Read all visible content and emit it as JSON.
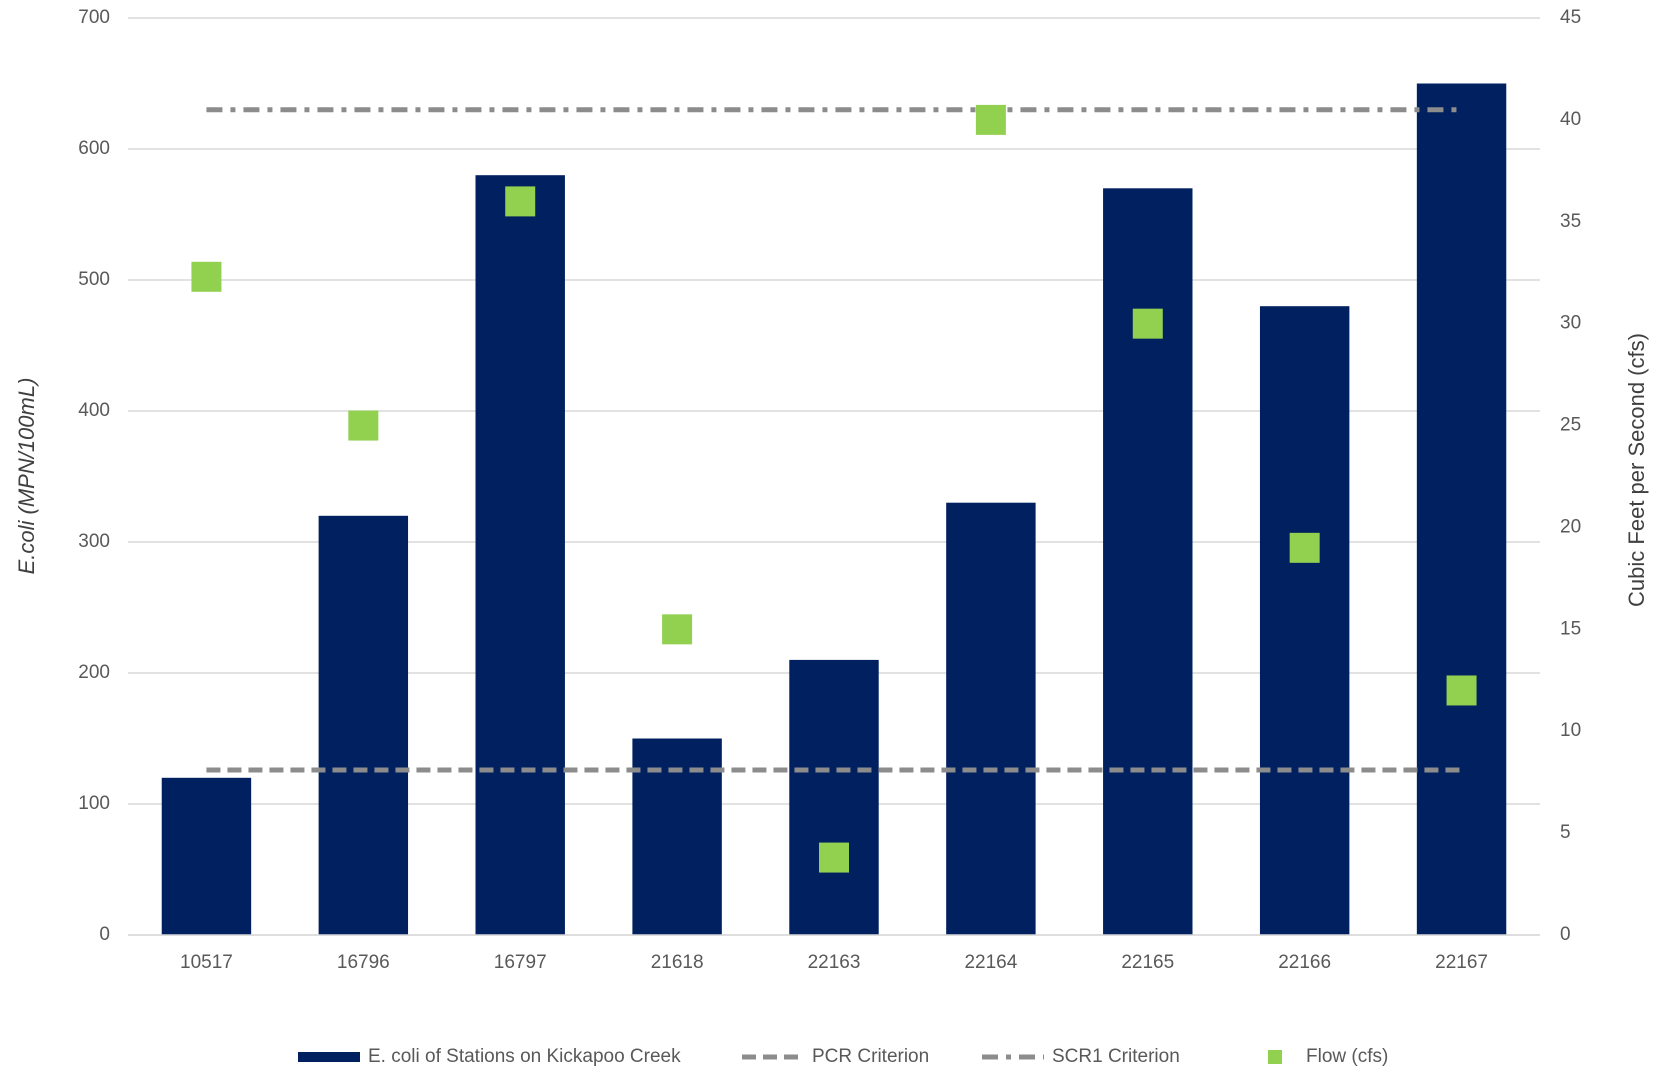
{
  "chart_data": {
    "type": "bar",
    "ylabel": "E.coli (MPN/100mL)",
    "y2label": "Cubic Feet per Second (cfs)",
    "categories": [
      "10517",
      "16796",
      "16797",
      "21618",
      "22163",
      "22164",
      "22165",
      "22166",
      "22167"
    ],
    "series": [
      {
        "name": "E. coli of Stations on Kickapoo Creek",
        "type": "bar",
        "color": "#002060",
        "values": [
          120,
          320,
          580,
          150,
          210,
          330,
          570,
          480,
          650
        ]
      },
      {
        "name": "PCR Criterion",
        "type": "line",
        "dash": "dash",
        "color": "#8c8c8c",
        "values": [
          126,
          126,
          126,
          126,
          126,
          126,
          126,
          126,
          126
        ]
      },
      {
        "name": "SCR1 Criterion",
        "type": "line",
        "dash": "dashdot",
        "color": "#8c8c8c",
        "values": [
          630,
          630,
          630,
          630,
          630,
          630,
          630,
          630,
          630
        ]
      },
      {
        "name": "Flow (cfs)",
        "type": "scatter",
        "axis": "y2",
        "color": "#92d050",
        "values": [
          32.3,
          25,
          36,
          15,
          3.8,
          40,
          30,
          19,
          12
        ]
      }
    ],
    "ylim": [
      0,
      700
    ],
    "yticks": [
      0,
      100,
      200,
      300,
      400,
      500,
      600,
      700
    ],
    "y2lim": [
      0,
      45
    ],
    "y2ticks": [
      0,
      5,
      10,
      15,
      20,
      25,
      30,
      35,
      40,
      45
    ],
    "grid": true,
    "legend": "bottom"
  }
}
